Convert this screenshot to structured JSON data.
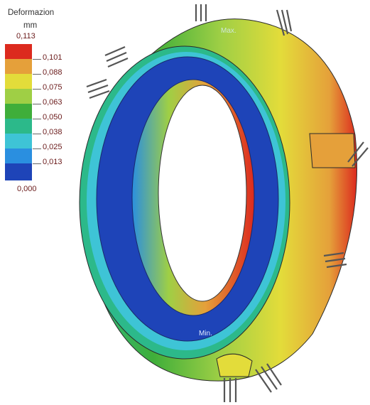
{
  "legend": {
    "title": "Deformazion",
    "unit": "mm",
    "max": "0,113",
    "min": "0,000",
    "steps": [
      {
        "label": "0,101",
        "color": "#dc2a1e"
      },
      {
        "label": "0,088",
        "color": "#e5a03a"
      },
      {
        "label": "0,075",
        "color": "#e3dc3a"
      },
      {
        "label": "0,063",
        "color": "#9fcf45"
      },
      {
        "label": "0,050",
        "color": "#3fae3a"
      },
      {
        "label": "0,038",
        "color": "#2cb98a"
      },
      {
        "label": "0,025",
        "color": "#3ec4d6"
      },
      {
        "label": "0,013",
        "color": "#2a8fe0"
      },
      {
        "label": null,
        "color": "#1e44b8"
      }
    ]
  },
  "model": {
    "max_label": "Max.",
    "min_label": "Min."
  }
}
